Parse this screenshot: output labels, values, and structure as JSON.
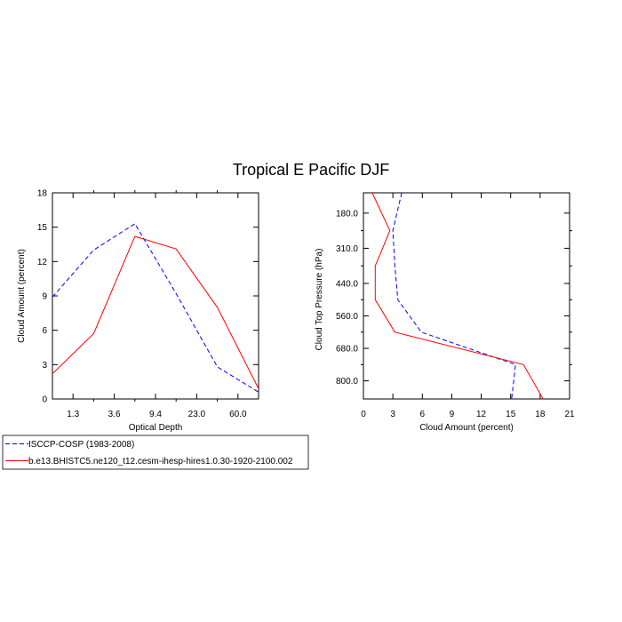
{
  "figure_title": "Tropical E Pacific DJF",
  "chart_data": [
    {
      "type": "line",
      "xlabel": "Optical Depth",
      "ylabel": "Cloud Amount (percent)",
      "xticks": [
        "1.3",
        "3.6",
        "9.4",
        "23.0",
        "60.0"
      ],
      "xlim": [
        0,
        5
      ],
      "ylim": [
        0,
        18
      ],
      "yticks": [
        0,
        3,
        6,
        9,
        12,
        15,
        18
      ],
      "ytick_labels": [
        "0",
        "3",
        "6",
        "9",
        "12",
        "15",
        "18"
      ],
      "series": [
        {
          "name": "ISCCP-COSP (1983-2008)",
          "color": "#0000ff",
          "dash": "dashed",
          "x": [
            0,
            1,
            2,
            3,
            4,
            5
          ],
          "y": [
            8.9,
            13.0,
            15.3,
            9.2,
            2.8,
            0.6
          ]
        },
        {
          "name": "b.e13.BHISTC5.ne120_t12.cesm-ihesp-hires1.0.30-1920-2100.002",
          "color": "#ff0000",
          "dash": "solid",
          "x": [
            0,
            1,
            2,
            3,
            4,
            5
          ],
          "y": [
            2.2,
            5.7,
            14.2,
            13.1,
            8.0,
            0.9
          ]
        }
      ]
    },
    {
      "type": "line",
      "xlabel": "Cloud Amount (percent)",
      "ylabel": "Cloud Top Pressure (hPa)",
      "xlim": [
        0,
        21
      ],
      "xticks": [
        0,
        3,
        6,
        9,
        12,
        15,
        18,
        21
      ],
      "xtick_labels": [
        "0",
        "3",
        "6",
        "9",
        "12",
        "15",
        "18",
        "21"
      ],
      "ylim": [
        105,
        867
      ],
      "y_inverted": true,
      "yticks": [
        180,
        310,
        440,
        560,
        680,
        800
      ],
      "ytick_labels": [
        "180.0",
        "310.0",
        "440.0",
        "560.0",
        "680.0",
        "800.0"
      ],
      "series": [
        {
          "name": "ISCCP-COSP (1983-2008)",
          "color": "#0000ff",
          "dash": "dashed",
          "pressure": [
            105,
            245,
            375,
            500,
            620,
            740,
            867
          ],
          "amount": [
            3.9,
            3.0,
            3.2,
            3.5,
            5.9,
            15.5,
            15.1
          ]
        },
        {
          "name": "b.e13.BHISTC5.ne120_t12.cesm-ihesp-hires1.0.30-1920-2100.002",
          "color": "#ff0000",
          "dash": "solid",
          "pressure": [
            105,
            245,
            375,
            500,
            620,
            740,
            867
          ],
          "amount": [
            0.9,
            2.7,
            1.2,
            1.2,
            3.2,
            16.3,
            18.3
          ]
        }
      ]
    }
  ],
  "legend": {
    "entries": [
      {
        "label": "ISCCP-COSP (1983-2008)",
        "color": "#0000ff",
        "dash": "dashed"
      },
      {
        "label": "b.e13.BHISTC5.ne120_t12.cesm-ihesp-hires1.0.30-1920-2100.002",
        "color": "#ff0000",
        "dash": "solid"
      }
    ]
  }
}
